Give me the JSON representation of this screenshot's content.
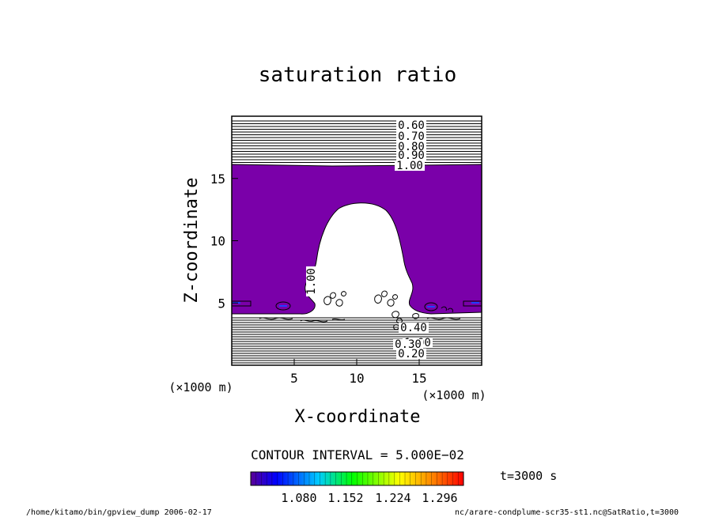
{
  "chart_data": {
    "type": "contour",
    "title": "saturation ratio",
    "xlabel": "X-coordinate",
    "ylabel": "Z-coordinate",
    "x_unit": "(×1000 m)",
    "z_unit": "(×1000 m)",
    "xlim": [
      0,
      20
    ],
    "ylim": [
      0,
      20
    ],
    "x_ticks": [
      5,
      10,
      15
    ],
    "y_ticks": [
      5,
      10,
      15
    ],
    "contour_labels": [
      "0.60",
      "0.70",
      "0.80",
      "0.90",
      "1.00",
      "1.00",
      "1.00",
      "0.40",
      "0.30",
      "0.20"
    ],
    "contour_interval_text": "CONTOUR INTERVAL = 5.000E−02",
    "time_text": "t=3000 s",
    "colorbar": {
      "tick_labels": [
        "1.080",
        "1.152",
        "1.224",
        "1.296"
      ],
      "colors": [
        "#5a0096",
        "#0000ff",
        "#00ccff",
        "#00ff00",
        "#ffff00",
        "#ff0000"
      ]
    },
    "saturated_fill_color": "#7a00a9",
    "footer_left": "/home/kitamo/bin/gpview_dump  2006-02-17",
    "footer_right": "nc/arare-condplume-scr35-st1.nc@SatRatio,t=3000"
  }
}
